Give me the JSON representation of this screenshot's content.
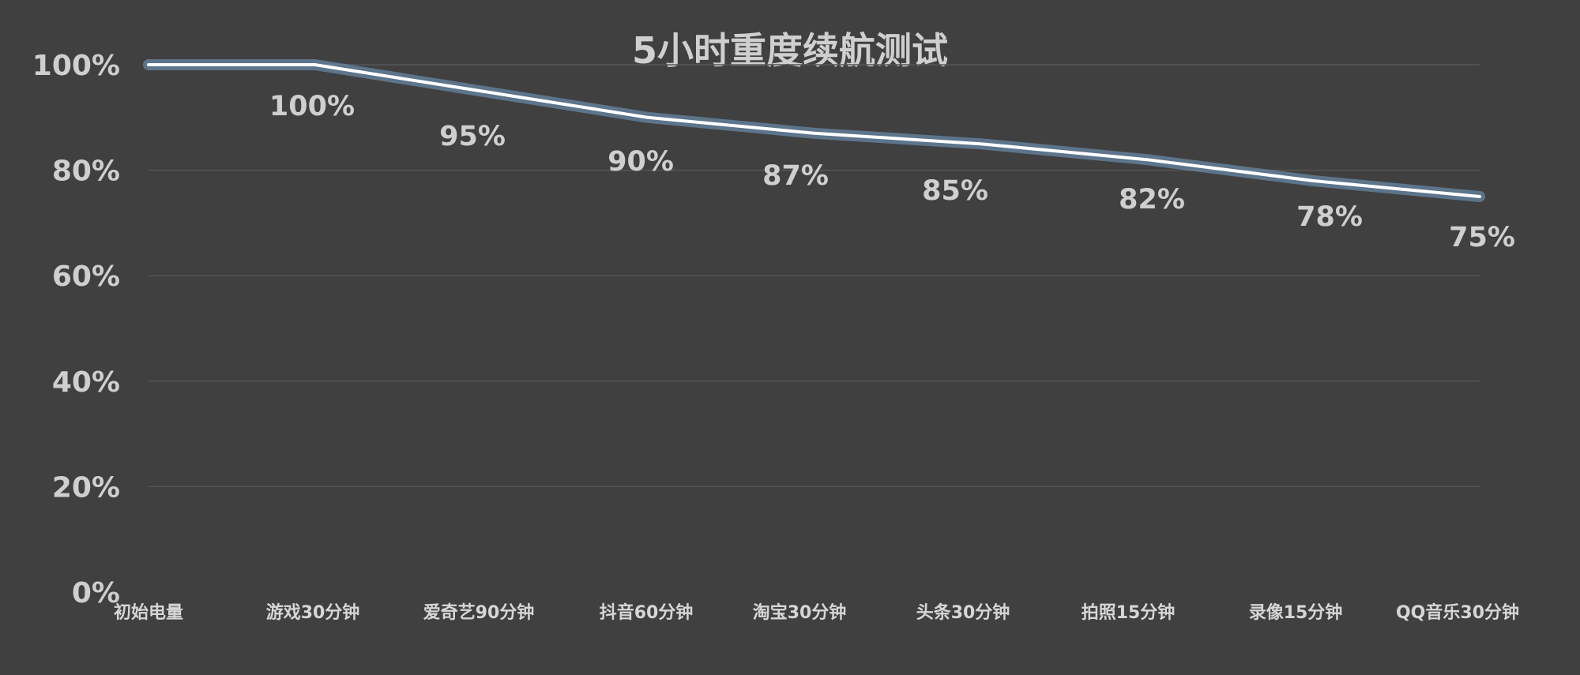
{
  "chart_data": {
    "type": "line",
    "title": "5小时重度续航测试",
    "xlabel": "",
    "ylabel": "",
    "categories": [
      "初始电量",
      "游戏30分钟",
      "爱奇艺90分钟",
      "抖音60分钟",
      "淘宝30分钟",
      "头条30分钟",
      "拍照15分钟",
      "录像15分钟",
      "QQ音乐30分钟"
    ],
    "series": [
      {
        "values": [
          100,
          100,
          95,
          90,
          87,
          85,
          82,
          78,
          75
        ]
      }
    ],
    "data_labels": [
      "100%",
      "95%",
      "90%",
      "87%",
      "85%",
      "82%",
      "78%",
      "75%"
    ],
    "yticks": [
      "0%",
      "20%",
      "40%",
      "60%",
      "80%",
      "100%"
    ],
    "ylim": [
      0,
      100
    ],
    "grid": true,
    "legend": "none",
    "colors": {
      "background": "#404040",
      "line": "#ffffff",
      "glow": "#7fb6e6",
      "text": "#cfcfcf",
      "grid": "#555555"
    }
  }
}
